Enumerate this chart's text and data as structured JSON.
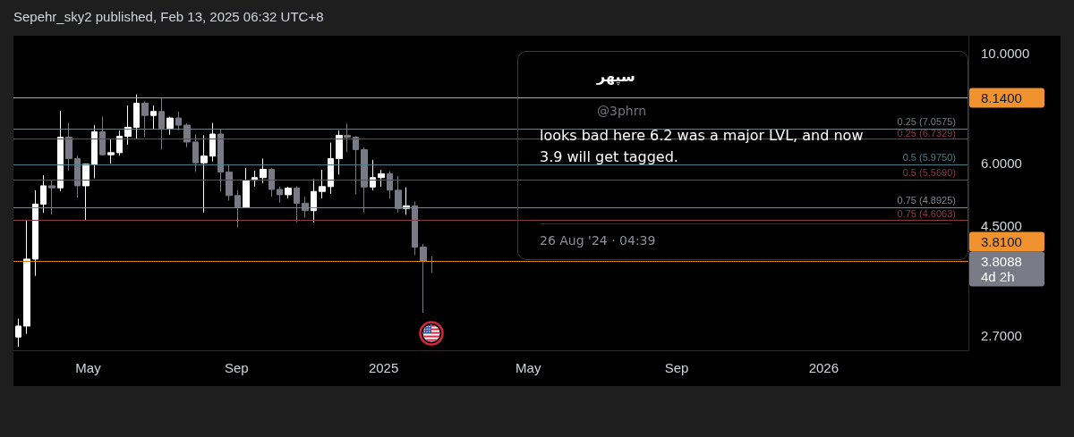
{
  "chart_data": {
    "type": "candlestick",
    "title": "Sepehr_sky2 published, Feb 13, 2025 06:32 UTC+8",
    "x": [
      "2024-03-04",
      "2024-03-11",
      "2024-03-18",
      "2024-03-25",
      "2024-04-01",
      "2024-04-08",
      "2024-04-15",
      "2024-04-22",
      "2024-04-29",
      "2024-05-06",
      "2024-05-13",
      "2024-05-20",
      "2024-05-27",
      "2024-06-03",
      "2024-06-10",
      "2024-06-17",
      "2024-06-24",
      "2024-07-01",
      "2024-07-08",
      "2024-07-15",
      "2024-07-22",
      "2024-07-29",
      "2024-08-05",
      "2024-08-12",
      "2024-08-19",
      "2024-08-26",
      "2024-09-02",
      "2024-09-09",
      "2024-09-16",
      "2024-09-23",
      "2024-09-30",
      "2024-10-07",
      "2024-10-14",
      "2024-10-21",
      "2024-10-28",
      "2024-11-04",
      "2024-11-11",
      "2024-11-18",
      "2024-11-25",
      "2024-12-02",
      "2024-12-09",
      "2024-12-16",
      "2024-12-23",
      "2024-12-30",
      "2025-01-06",
      "2025-01-13",
      "2025-01-20",
      "2025-01-27",
      "2025-02-03",
      "2025-02-10"
    ],
    "ohlc": [
      [
        2.68,
        2.92,
        2.56,
        2.82
      ],
      [
        2.82,
        4.6,
        2.72,
        3.85
      ],
      [
        3.85,
        5.3,
        3.56,
        4.97
      ],
      [
        4.97,
        5.68,
        4.77,
        5.41
      ],
      [
        5.41,
        5.56,
        4.73,
        5.36
      ],
      [
        5.36,
        7.67,
        5.27,
        6.78
      ],
      [
        6.78,
        7.24,
        5.81,
        6.14
      ],
      [
        6.14,
        6.23,
        5.12,
        5.41
      ],
      [
        5.41,
        5.99,
        4.6,
        5.98
      ],
      [
        5.98,
        7.17,
        5.6,
        6.95
      ],
      [
        6.95,
        7.46,
        6.23,
        6.25
      ],
      [
        6.25,
        6.72,
        6.0,
        6.31
      ],
      [
        6.31,
        6.99,
        6.22,
        6.81
      ],
      [
        6.81,
        7.86,
        6.55,
        7.1
      ],
      [
        7.1,
        8.27,
        6.74,
        7.94
      ],
      [
        7.94,
        8.0,
        6.78,
        7.5
      ],
      [
        7.5,
        7.86,
        7.05,
        7.64
      ],
      [
        7.64,
        8.13,
        6.4,
        7.07
      ],
      [
        7.07,
        7.46,
        6.86,
        7.41
      ],
      [
        7.41,
        7.64,
        7.0,
        7.17
      ],
      [
        7.17,
        7.24,
        6.47,
        6.63
      ],
      [
        6.63,
        6.87,
        5.77,
        6.02
      ],
      [
        6.02,
        6.84,
        4.78,
        6.21
      ],
      [
        6.21,
        7.24,
        6.06,
        6.88
      ],
      [
        6.88,
        7.05,
        5.27,
        5.77
      ],
      [
        5.77,
        5.98,
        5.05,
        5.17
      ],
      [
        5.17,
        5.3,
        4.46,
        4.9
      ],
      [
        4.9,
        5.88,
        4.88,
        5.54
      ],
      [
        5.55,
        5.8,
        5.39,
        5.62
      ],
      [
        5.62,
        6.14,
        5.48,
        5.84
      ],
      [
        5.84,
        5.88,
        5.14,
        5.32
      ],
      [
        5.32,
        5.39,
        5.0,
        5.19
      ],
      [
        5.19,
        5.39,
        5.1,
        5.35
      ],
      [
        5.35,
        5.4,
        4.57,
        4.99
      ],
      [
        4.99,
        5.14,
        4.67,
        4.82
      ],
      [
        4.82,
        5.58,
        4.56,
        5.27
      ],
      [
        5.27,
        5.83,
        5.1,
        5.39
      ],
      [
        5.39,
        6.61,
        5.21,
        6.14
      ],
      [
        6.14,
        7.0,
        5.7,
        6.84
      ],
      [
        6.84,
        7.22,
        6.33,
        6.78
      ],
      [
        6.78,
        6.81,
        5.2,
        6.4
      ],
      [
        6.4,
        6.46,
        4.78,
        5.38
      ],
      [
        5.38,
        6.1,
        5.3,
        5.62
      ],
      [
        5.62,
        5.83,
        5.39,
        5.72
      ],
      [
        5.72,
        5.79,
        5.1,
        5.3
      ],
      [
        5.3,
        5.66,
        4.78,
        4.87
      ],
      [
        4.87,
        5.37,
        4.73,
        4.93
      ],
      [
        4.93,
        5.03,
        3.92,
        4.07
      ],
      [
        4.07,
        4.13,
        3.0,
        3.81
      ],
      [
        3.81,
        3.9,
        3.61,
        3.8088
      ]
    ],
    "colors": [
      "#ffffff",
      "#ffffff",
      "#ffffff",
      "#ffffff",
      "#787b86",
      "#ffffff",
      "#787b86",
      "#787b86",
      "#ffffff",
      "#ffffff",
      "#787b86",
      "#ffffff",
      "#ffffff",
      "#ffffff",
      "#ffffff",
      "#787b86",
      "#ffffff",
      "#787b86",
      "#ffffff",
      "#787b86",
      "#787b86",
      "#787b86",
      "#ffffff",
      "#ffffff",
      "#787b86",
      "#787b86",
      "#787b86",
      "#ffffff",
      "#ffffff",
      "#ffffff",
      "#787b86",
      "#787b86",
      "#ffffff",
      "#787b86",
      "#787b86",
      "#ffffff",
      "#ffffff",
      "#ffffff",
      "#ffffff",
      "#787b86",
      "#787b86",
      "#787b86",
      "#ffffff",
      "#ffffff",
      "#787b86",
      "#787b86",
      "#ffffff",
      "#787b86",
      "#787b86",
      "#787b86"
    ],
    "xlim": [
      "2024-02-29",
      "2026-05-01"
    ],
    "xticks": [
      {
        "value": "2024-05",
        "label": "May"
      },
      {
        "value": "2024-09",
        "label": "Sep"
      },
      {
        "value": "2025",
        "label": "2025"
      },
      {
        "value": "2025-05",
        "label": "May"
      },
      {
        "value": "2025-09",
        "label": "Sep"
      },
      {
        "value": "2026",
        "label": "2026"
      }
    ],
    "ylim": [
      2.52,
      10.86
    ],
    "yticks": [
      {
        "value": 2.7,
        "label": "2.7000"
      },
      {
        "value": 4.5,
        "label": "4.5000"
      },
      {
        "value": 6,
        "label": "6.0000"
      },
      {
        "value": 10,
        "label": "10.0000"
      }
    ],
    "log": true,
    "ref_lines": [
      {
        "axis": "y",
        "value": 8.14,
        "label": "8.1400",
        "color": "#f0922e"
      },
      {
        "axis": "y",
        "value": 7.0575,
        "color": "#6f7d83"
      },
      {
        "axis": "y",
        "value": 6.7329,
        "color": "#8b3a4a"
      },
      {
        "axis": "y",
        "value": 5.975,
        "color": "#4a7d85"
      },
      {
        "axis": "y",
        "value": 5.569,
        "color": "#8b3a4a"
      },
      {
        "axis": "y",
        "value": 4.8925,
        "color": "#7d868c"
      },
      {
        "axis": "y",
        "value": 4.6063,
        "color": "#8b3a4a"
      },
      {
        "axis": "y",
        "value": 3.81,
        "label": "3.8100",
        "color": "#f0922e"
      },
      {
        "axis": "y",
        "value": 3.8088,
        "label": "3.8088\n4d 2h",
        "color": "#787b86",
        "line_style": "dotted"
      }
    ],
    "annotations": [
      {
        "text": "0.25 (7.0575)",
        "y": 7.0575
      },
      {
        "text": "0.25 (6.7329)",
        "y": 6.7329
      },
      {
        "text": "0.5 (5.9750)",
        "y": 5.975
      },
      {
        "text": "0.5 (5.5690)",
        "y": 5.569
      },
      {
        "text": "0.75 (4.8925)",
        "y": 4.8925
      },
      {
        "text": "0.75 (4.6063)",
        "y": 4.6063
      },
      "سپهر",
      "@3phrn",
      "looks bad here 6.2 was a major LVL, and now 3.9 will get tagged.",
      "26 Aug '24 · 04:39"
    ]
  }
}
